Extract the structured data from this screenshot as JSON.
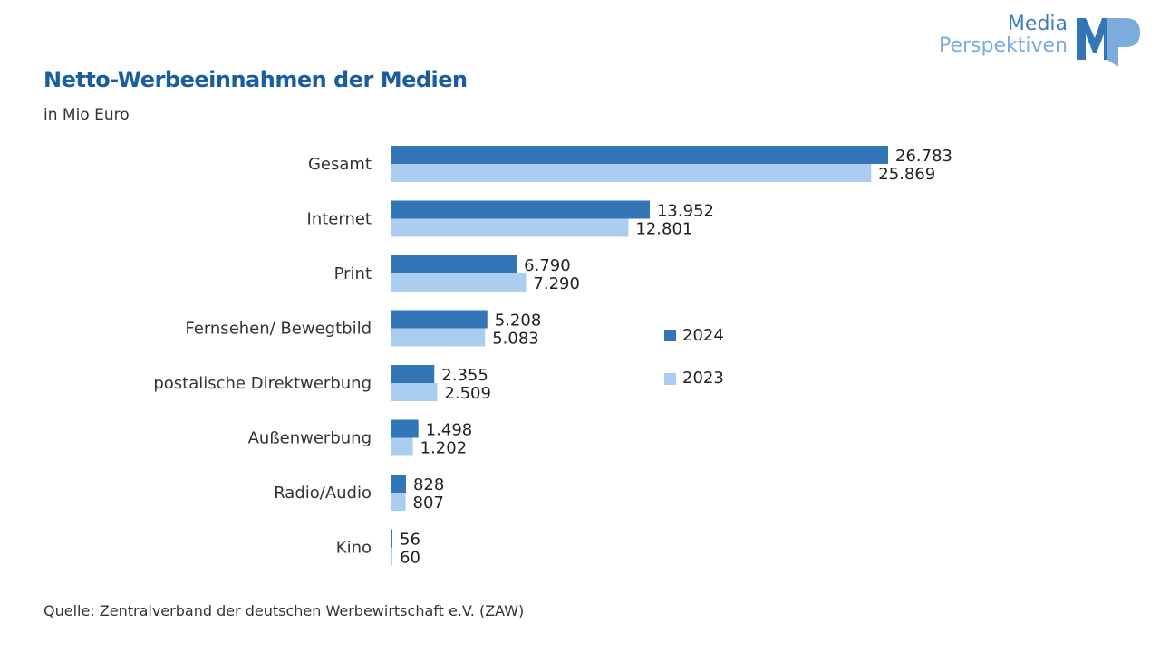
{
  "logo": {
    "line1": "Media",
    "line2": "Perspektiven",
    "mark": "MP"
  },
  "header": {
    "title": "Netto-Werbeeinnahmen der Medien",
    "subtitle": "in  Mio Euro"
  },
  "footer": {
    "source": "Quelle: Zentralverband der deutschen Werbewirtschaft e.V. (ZAW)"
  },
  "colors": {
    "series_2024": "#3276b8",
    "series_2023": "#aacdf0",
    "title": "#1a5ea1"
  },
  "chart_data": {
    "type": "bar",
    "orientation": "horizontal",
    "title": "Netto-Werbeeinnahmen der Medien",
    "subtitle": "in Mio Euro",
    "categories": [
      "Gesamt",
      "Internet",
      "Print",
      "Fernsehen/ Bewegtbild",
      "postalische Direktwerbung",
      "Außenwerbung",
      "Radio/Audio",
      "Kino"
    ],
    "series": [
      {
        "name": "2024",
        "values": [
          26783,
          13952,
          6790,
          5208,
          2355,
          1498,
          828,
          56
        ],
        "labels": [
          "26.783",
          "13.952",
          "6.790",
          "5.208",
          "2.355",
          "1.498",
          "828",
          "56"
        ]
      },
      {
        "name": "2023",
        "values": [
          25869,
          12801,
          7290,
          5083,
          2509,
          1202,
          807,
          60
        ],
        "labels": [
          "25.869",
          "12.801",
          "7.290",
          "5.083",
          "2.509",
          "1.202",
          "807",
          "60"
        ]
      }
    ],
    "xlim": [
      0,
      26783
    ],
    "grid": false,
    "legend": "right-middle",
    "xlabel": "",
    "ylabel": ""
  }
}
